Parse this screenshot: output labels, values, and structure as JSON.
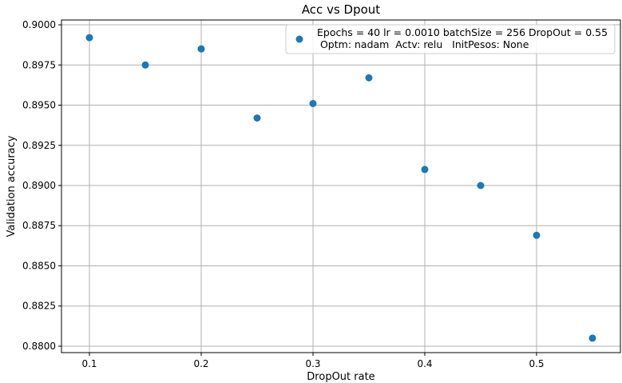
{
  "chart_data": {
    "type": "scatter",
    "title": "Acc vs Dpout",
    "xlabel": "DropOut rate",
    "ylabel": "Validation accuracy",
    "xlim": [
      0.075,
      0.575
    ],
    "ylim": [
      0.8796,
      0.9003
    ],
    "grid": true,
    "x_ticks": [
      "0.1",
      "0.2",
      "0.3",
      "0.4",
      "0.5"
    ],
    "y_ticks": [
      "0.8800",
      "0.8825",
      "0.8850",
      "0.8875",
      "0.8900",
      "0.8925",
      "0.8950",
      "0.8975",
      "0.9000"
    ],
    "legend_position": "top-right",
    "legend_lines": [
      "Epochs = 40 lr = 0.0010 batchSize = 256 DropOut = 0.55",
      " Optm: nadam  Actv: relu   InitPesos: None"
    ],
    "marker_color": "#1f77b4",
    "points": [
      {
        "x": 0.1,
        "y": 0.8992
      },
      {
        "x": 0.15,
        "y": 0.8975
      },
      {
        "x": 0.2,
        "y": 0.8985
      },
      {
        "x": 0.25,
        "y": 0.8942
      },
      {
        "x": 0.3,
        "y": 0.8951
      },
      {
        "x": 0.35,
        "y": 0.8967
      },
      {
        "x": 0.4,
        "y": 0.891
      },
      {
        "x": 0.45,
        "y": 0.89
      },
      {
        "x": 0.5,
        "y": 0.8869
      },
      {
        "x": 0.55,
        "y": 0.8805
      }
    ]
  }
}
